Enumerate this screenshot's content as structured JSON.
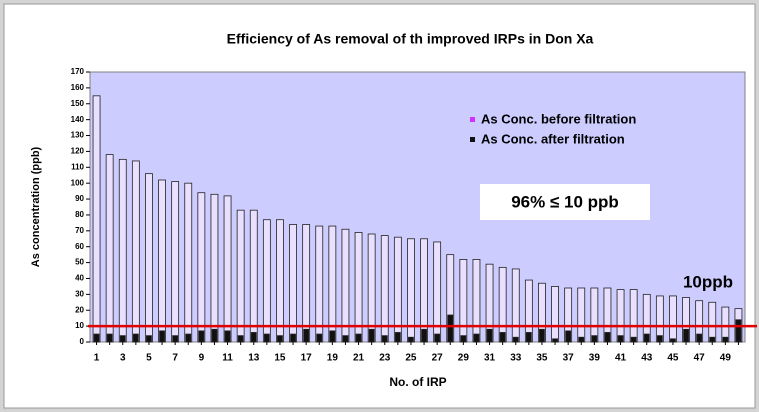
{
  "chart_data": {
    "type": "bar",
    "title": "Efficiency of As removal of th improved IRPs in Don Xa",
    "x_label": "No. of IRP",
    "y_label": "As concentration (ppb)",
    "categories": [
      "1",
      null,
      "3",
      null,
      "5",
      null,
      "7",
      null,
      "9",
      null,
      "11",
      null,
      "13",
      null,
      "15",
      null,
      "17",
      null,
      "19",
      null,
      "21",
      null,
      "23",
      null,
      "25",
      null,
      "27",
      null,
      "29",
      null,
      "31",
      null,
      "33",
      null,
      "35",
      null,
      "37",
      null,
      "39",
      null,
      "41",
      null,
      "43",
      null,
      "45",
      null,
      "47",
      null,
      "49",
      null
    ],
    "series": [
      {
        "name": "As Conc. before filtration",
        "color": "#e9e0ff",
        "values": [
          155,
          118,
          115,
          114,
          106,
          102,
          101,
          100,
          94,
          93,
          92,
          83,
          83,
          77,
          77,
          74,
          74,
          73,
          73,
          71,
          69,
          68,
          67,
          66,
          65,
          65,
          63,
          55,
          52,
          52,
          49,
          47,
          46,
          39,
          37,
          35,
          34,
          34,
          34,
          34,
          33,
          33,
          30,
          29,
          29,
          28,
          26,
          25,
          22,
          21
        ]
      },
      {
        "name": "As Conc. after filtration",
        "color": "#111111",
        "values": [
          5,
          5,
          4,
          5,
          4,
          7,
          4,
          5,
          7,
          8,
          7,
          4,
          6,
          5,
          4,
          5,
          8,
          5,
          7,
          4,
          5,
          8,
          4,
          6,
          3,
          8,
          5,
          17,
          4,
          5,
          8,
          6,
          3,
          6,
          8,
          2,
          7,
          3,
          4,
          6,
          4,
          3,
          5,
          4,
          2,
          8,
          5,
          3,
          3,
          14
        ]
      }
    ],
    "ylim": [
      0,
      170
    ],
    "yticks": [
      0,
      10,
      20,
      30,
      40,
      50,
      60,
      70,
      80,
      90,
      100,
      110,
      120,
      130,
      140,
      150,
      160,
      170
    ],
    "threshold": 10,
    "threshold_label": "10ppb",
    "threshold_color": "#e00000",
    "annotation": "96% ≤ 10 ppb",
    "plot_background": "#ccccff"
  }
}
